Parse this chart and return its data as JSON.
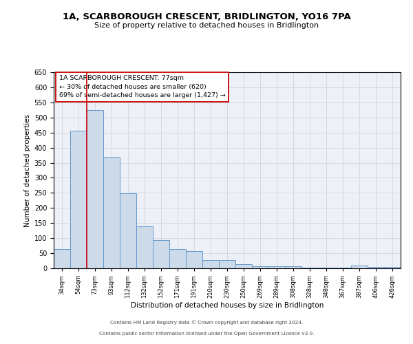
{
  "title": "1A, SCARBOROUGH CRESCENT, BRIDLINGTON, YO16 7PA",
  "subtitle": "Size of property relative to detached houses in Bridlington",
  "xlabel": "Distribution of detached houses by size in Bridlington",
  "ylabel": "Number of detached properties",
  "bar_labels": [
    "34sqm",
    "54sqm",
    "73sqm",
    "93sqm",
    "112sqm",
    "132sqm",
    "152sqm",
    "171sqm",
    "191sqm",
    "210sqm",
    "230sqm",
    "250sqm",
    "269sqm",
    "289sqm",
    "308sqm",
    "328sqm",
    "348sqm",
    "367sqm",
    "387sqm",
    "406sqm",
    "426sqm"
  ],
  "bar_values": [
    63,
    456,
    524,
    370,
    248,
    140,
    93,
    63,
    56,
    27,
    27,
    13,
    6,
    6,
    6,
    3,
    3,
    3,
    10,
    5,
    4
  ],
  "bar_color": "#ccdaea",
  "bar_edgecolor": "#6699cc",
  "bar_linewidth": 0.7,
  "vline_color": "#cc0000",
  "vline_linewidth": 1.2,
  "vline_idx": 2,
  "ylim": [
    0,
    650
  ],
  "yticks": [
    0,
    50,
    100,
    150,
    200,
    250,
    300,
    350,
    400,
    450,
    500,
    550,
    600,
    650
  ],
  "annotation_title": "1A SCARBOROUGH CRESCENT: 77sqm",
  "annotation_line2": "← 30% of detached houses are smaller (620)",
  "annotation_line3": "69% of semi-detached houses are larger (1,427) →",
  "annotation_box_color": "#ffffff",
  "annotation_box_edgecolor": "#cc0000",
  "grid_color": "#c8d0dc",
  "bg_color": "#edf1f7",
  "footer1": "Contains HM Land Registry data © Crown copyright and database right 2024.",
  "footer2": "Contains public sector information licensed under the Open Government Licence v3.0."
}
